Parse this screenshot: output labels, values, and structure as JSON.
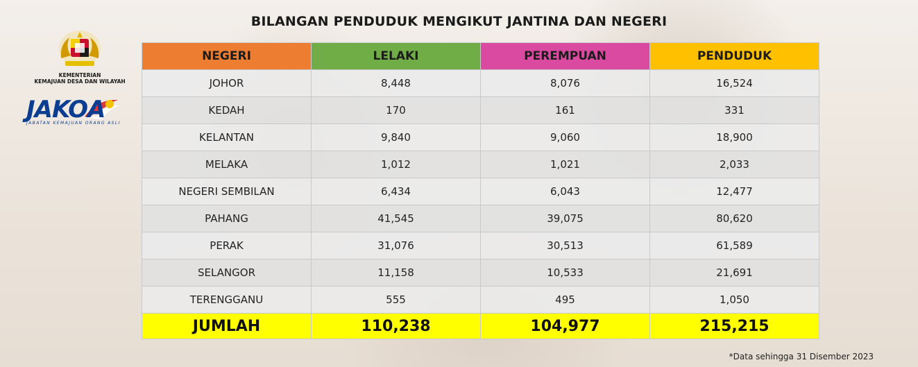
{
  "title": "BILANGAN PENDUDUK MENGIKUT JANTINA DAN NEGERI",
  "logos": {
    "ministry_line1": "KEMENTERIAN",
    "ministry_line2": "KEMAJUAN DESA DAN WILAYAH",
    "agency_name": "JAKOA",
    "agency_full": "JABATAN KEMAJUAN ORANG ASLI"
  },
  "colors": {
    "negeri_header": "#ed7d31",
    "lelaki_header": "#70ad47",
    "perempuan_header": "#d94aa0",
    "penduduk_header": "#ffc000",
    "total_row": "#ffff00"
  },
  "table": {
    "headers": [
      "NEGERI",
      "LELAKI",
      "PEREMPUAN",
      "PENDUDUK"
    ],
    "rows": [
      [
        "JOHOR",
        "8,448",
        "8,076",
        "16,524"
      ],
      [
        "KEDAH",
        "170",
        "161",
        "331"
      ],
      [
        "KELANTAN",
        "9,840",
        "9,060",
        "18,900"
      ],
      [
        "MELAKA",
        "1,012",
        "1,021",
        "2,033"
      ],
      [
        "NEGERI SEMBILAN",
        "6,434",
        "6,043",
        "12,477"
      ],
      [
        "PAHANG",
        "41,545",
        "39,075",
        "80,620"
      ],
      [
        "PERAK",
        "31,076",
        "30,513",
        "61,589"
      ],
      [
        "SELANGOR",
        "11,158",
        "10,533",
        "21,691"
      ],
      [
        "TERENGGANU",
        "555",
        "495",
        "1,050"
      ]
    ],
    "total": [
      "JUMLAH",
      "110,238",
      "104,977",
      "215,215"
    ]
  },
  "footnote": "*Data sehingga 31 Disember 2023"
}
